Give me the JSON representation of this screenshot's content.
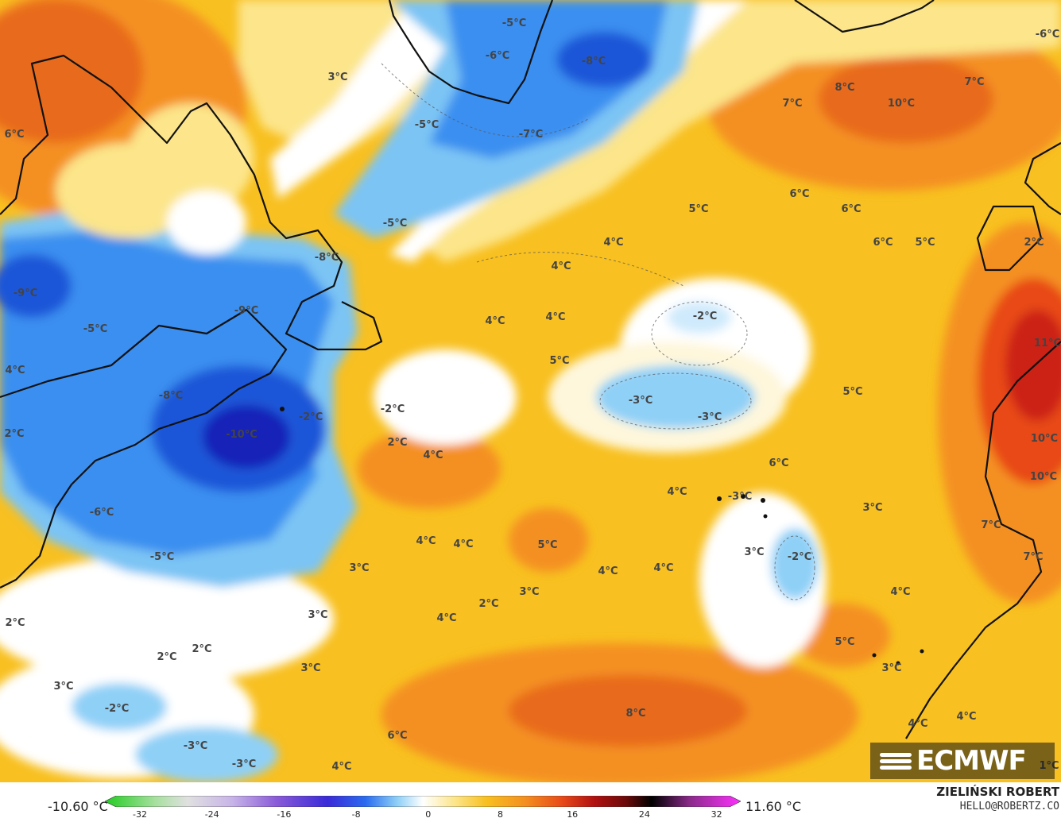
{
  "map": {
    "temperature_labels": [
      "3°C",
      "-5°C",
      "-6°C",
      "-8°C",
      "-7°C",
      "-5°C",
      "6°C",
      "-5°C",
      "-8°C",
      "-9°C",
      "-9°C",
      "-5°C",
      "4°C",
      "-8°C",
      "-10°C",
      "-2°C",
      "-2°C",
      "2°C",
      "-6°C",
      "-5°C",
      "7°C",
      "8°C",
      "10°C",
      "7°C",
      "6°C",
      "5°C",
      "6°C",
      "4°C",
      "4°C",
      "6°C",
      "5°C",
      "4°C",
      "4°C",
      "5°C",
      "-2°C",
      "2°C",
      "4°C",
      "-3°C",
      "-3°C",
      "5°C",
      "6°C",
      "4°C",
      "3°C",
      "-3°C",
      "4°C",
      "4°C",
      "5°C",
      "4°C",
      "4°C",
      "3°C",
      "-2°C",
      "3°C",
      "3°C",
      "3°C",
      "4°C",
      "2°C",
      "2°C",
      "2°C",
      "3°C",
      "2°C",
      "3°C",
      "-2°C",
      "5°C",
      "4°C",
      "3°C",
      "8°C",
      "6°C",
      "-3°C",
      "-3°C",
      "4°C",
      "4°C",
      "4°C",
      "11°C",
      "10°C",
      "10°C",
      "7°C",
      "7°C",
      "1°C",
      "-6°C",
      "2°C"
    ],
    "colors": {
      "very_cold": "#1a24c8",
      "cold": "#2f7bea",
      "cool": "#8fd0f7",
      "neutral": "#ffffff",
      "mild": "#fce58a",
      "warm": "#f8c020",
      "warmer": "#f49020",
      "hot": "#e84818",
      "hottest": "#cc2014",
      "land_outline": "#111111"
    }
  },
  "logo": {
    "text": "ECMWF"
  },
  "colorbar": {
    "min_label": "-10.60 °C",
    "max_label": "11.60 °C",
    "ticks": [
      "-32",
      "-24",
      "-16",
      "-8",
      "0",
      "8",
      "16",
      "24",
      "32"
    ]
  },
  "author": {
    "name": "ZIELIŃSKI ROBERT",
    "email": "HELLO@ROBERTZ.CO"
  }
}
